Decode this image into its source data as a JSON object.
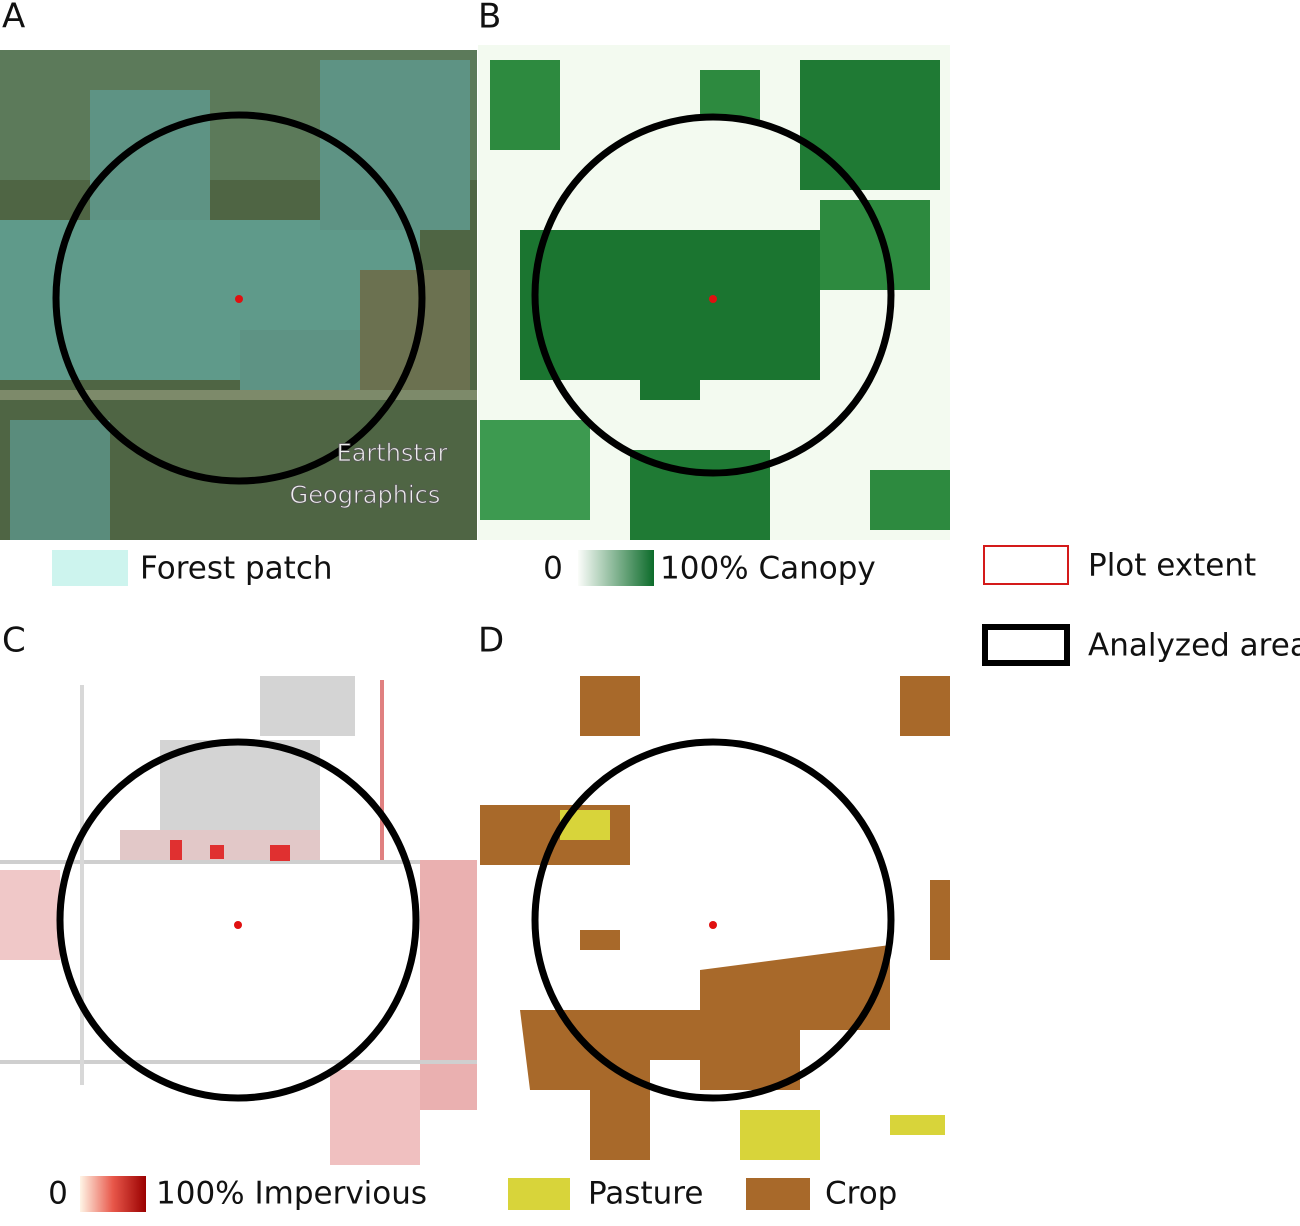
{
  "panels": [
    {
      "label": "A",
      "legend": [
        "Forest patch"
      ],
      "attribution": [
        "Earthstar",
        "Geographics"
      ]
    },
    {
      "label": "B",
      "legend": [
        "0",
        "100% Canopy"
      ]
    },
    {
      "label": "C",
      "legend": [
        "0",
        "100% Impervious"
      ]
    },
    {
      "label": "D",
      "legend": [
        "Pasture",
        "Crop"
      ]
    }
  ],
  "key": [
    "Plot extent",
    "Analyzed area"
  ]
}
